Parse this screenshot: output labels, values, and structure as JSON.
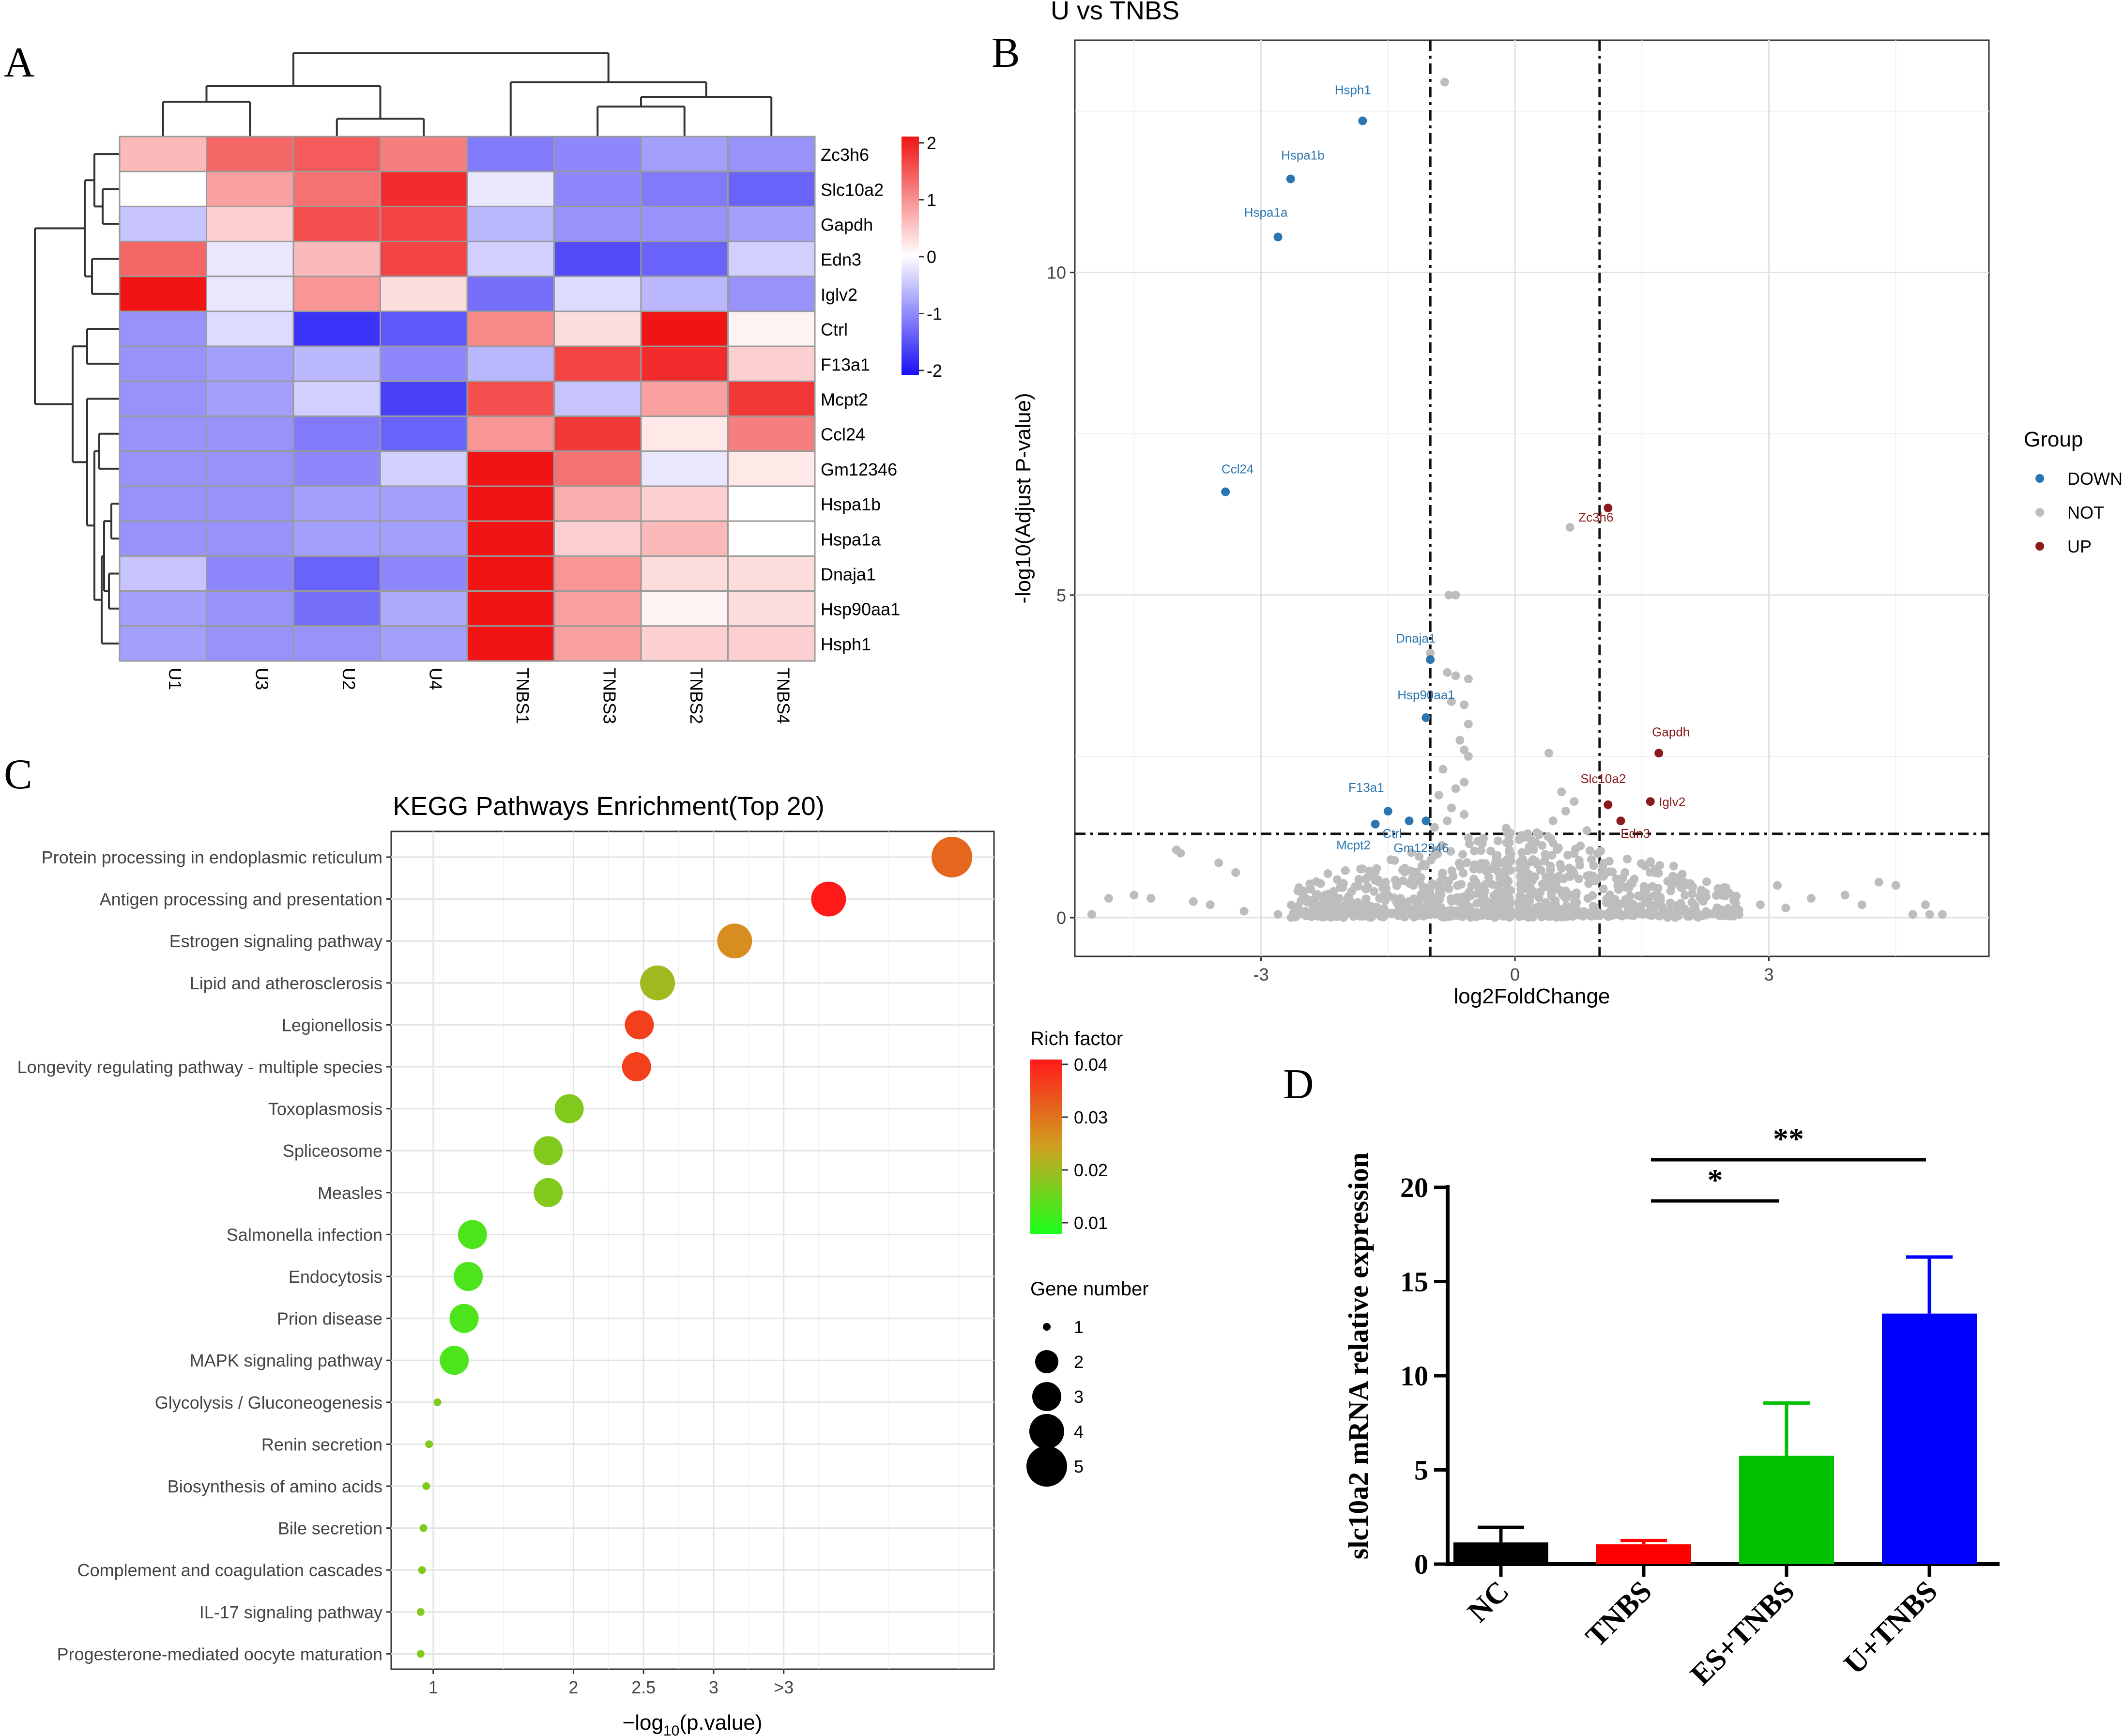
{
  "chart_data": [
    {
      "panel": "A",
      "type": "heatmap",
      "panel_label": "A",
      "rows": [
        "Zc3h6",
        "Slc10a2",
        "Gapdh",
        "Edn3",
        "Iglv2",
        "Ctrl",
        "F13a1",
        "Mcpt2",
        "Ccl24",
        "Gm12346",
        "Hspa1b",
        "Hspa1a",
        "Dnaja1",
        "Hsp90aa1",
        "Hsph1"
      ],
      "columns": [
        "U1",
        "U3",
        "U2",
        "U4",
        "TNBS1",
        "TNBS3",
        "TNBS2",
        "TNBS4"
      ],
      "values": [
        [
          0.6,
          1.3,
          1.4,
          1.1,
          -1.1,
          -1.0,
          -0.8,
          -0.9
        ],
        [
          0.0,
          0.8,
          1.2,
          1.8,
          -0.2,
          -1.0,
          -1.1,
          -1.3
        ],
        [
          -0.5,
          0.4,
          1.5,
          1.6,
          -0.6,
          -0.9,
          -0.9,
          -0.8
        ],
        [
          1.3,
          -0.2,
          0.6,
          1.6,
          -0.4,
          -1.5,
          -1.3,
          -0.4
        ],
        [
          2.0,
          -0.2,
          0.9,
          0.3,
          -1.2,
          -0.3,
          -0.6,
          -0.9
        ],
        [
          -0.9,
          -0.3,
          -1.7,
          -1.4,
          1.0,
          0.3,
          2.0,
          0.1
        ],
        [
          -0.9,
          -0.8,
          -0.6,
          -1.0,
          -0.6,
          1.6,
          1.8,
          0.4
        ],
        [
          -0.9,
          -0.8,
          -0.4,
          -1.6,
          1.5,
          -0.5,
          0.8,
          1.7
        ],
        [
          -0.9,
          -0.9,
          -1.1,
          -1.3,
          0.9,
          1.7,
          0.2,
          1.1
        ],
        [
          -0.9,
          -0.9,
          -1.0,
          -0.4,
          2.0,
          1.2,
          -0.2,
          0.2
        ],
        [
          -0.9,
          -0.9,
          -0.8,
          -0.8,
          2.1,
          0.7,
          0.4,
          0.0
        ],
        [
          -0.9,
          -0.9,
          -0.8,
          -0.8,
          2.1,
          0.4,
          0.6,
          0.0
        ],
        [
          -0.5,
          -1.0,
          -1.3,
          -1.0,
          2.0,
          0.9,
          0.3,
          0.3
        ],
        [
          -0.8,
          -0.9,
          -1.2,
          -0.7,
          2.1,
          0.8,
          0.1,
          0.3
        ],
        [
          -0.8,
          -0.9,
          -0.9,
          -0.8,
          2.1,
          0.8,
          0.4,
          0.4
        ]
      ],
      "legend_ticks": [
        "2",
        "1",
        "0",
        "-1",
        "-2"
      ],
      "legend_range": [
        -2,
        2
      ],
      "colors": {
        "low": "#1a0ff7",
        "mid": "#ffffff",
        "high": "#f01414"
      }
    },
    {
      "panel": "B",
      "type": "scatter",
      "panel_label": "B",
      "title": "U vs TNBS",
      "xlabel": "log2FoldChange",
      "ylabel": "-log10(Adjust P-value)",
      "xlim": [
        -5.2,
        5.6
      ],
      "ylim": [
        -0.6,
        13.6
      ],
      "xticks": [
        "-3",
        "0",
        "3"
      ],
      "xtick_values": [
        -3,
        0,
        3
      ],
      "yticks": [
        "0",
        "5",
        "10"
      ],
      "ytick_values": [
        0,
        5,
        10
      ],
      "vlines": [
        -1,
        1
      ],
      "hline": 1.3,
      "legend_title": "Group",
      "legend": [
        "DOWN",
        "NOT",
        "UP"
      ],
      "group_colors": {
        "DOWN": "#2b76b0",
        "NOT": "#bdbdbd",
        "UP": "#8b1a1a"
      },
      "labeled_points": [
        {
          "gene": "Hsph1",
          "x": -1.8,
          "y": 12.35,
          "group": "DOWN"
        },
        {
          "gene": "Hspa1b",
          "x": -2.65,
          "y": 11.45,
          "group": "DOWN"
        },
        {
          "gene": "Hspa1a",
          "x": -2.8,
          "y": 10.55,
          "group": "DOWN"
        },
        {
          "gene": "Ccl24",
          "x": -3.42,
          "y": 6.6,
          "group": "DOWN"
        },
        {
          "gene": "Dnaja1",
          "x": -1.0,
          "y": 4.0,
          "group": "DOWN"
        },
        {
          "gene": "Hsp90aa1",
          "x": -1.05,
          "y": 3.1,
          "group": "DOWN"
        },
        {
          "gene": "F13a1",
          "x": -1.5,
          "y": 1.65,
          "group": "DOWN"
        },
        {
          "gene": "Ctrl",
          "x": -1.25,
          "y": 1.5,
          "group": "DOWN"
        },
        {
          "gene": "Mcpt2",
          "x": -1.65,
          "y": 1.45,
          "group": "DOWN"
        },
        {
          "gene": "Gm12346",
          "x": -1.05,
          "y": 1.5,
          "group": "DOWN"
        },
        {
          "gene": "Zc3h6",
          "x": 1.1,
          "y": 6.35,
          "group": "UP"
        },
        {
          "gene": "Gapdh",
          "x": 1.7,
          "y": 2.55,
          "group": "UP"
        },
        {
          "gene": "Slc10a2",
          "x": 1.1,
          "y": 1.75,
          "group": "UP"
        },
        {
          "gene": "Iglv2",
          "x": 1.6,
          "y": 1.8,
          "group": "UP"
        },
        {
          "gene": "Edn3",
          "x": 1.25,
          "y": 1.5,
          "group": "UP"
        }
      ],
      "other_points": [
        [
          -0.83,
          12.95
        ],
        [
          -1.0,
          4.1
        ],
        [
          -0.78,
          5.0
        ],
        [
          -0.7,
          5.0
        ],
        [
          -0.7,
          3.75
        ],
        [
          -0.8,
          3.8
        ],
        [
          -0.55,
          3.7
        ],
        [
          -0.6,
          3.3
        ],
        [
          -0.75,
          3.35
        ],
        [
          -0.55,
          3.0
        ],
        [
          -0.65,
          2.75
        ],
        [
          -0.6,
          2.6
        ],
        [
          -0.55,
          2.5
        ],
        [
          -0.85,
          2.3
        ],
        [
          -0.6,
          2.1
        ],
        [
          -0.7,
          2.0
        ],
        [
          -0.9,
          1.9
        ],
        [
          -0.75,
          1.7
        ],
        [
          -0.6,
          1.6
        ],
        [
          -0.8,
          1.5
        ],
        [
          -0.95,
          1.4
        ],
        [
          0.65,
          6.05
        ],
        [
          0.4,
          2.55
        ],
        [
          0.55,
          1.95
        ],
        [
          0.7,
          1.8
        ],
        [
          0.6,
          1.65
        ],
        [
          0.45,
          1.5
        ],
        [
          0.85,
          1.35
        ],
        [
          -4.0,
          1.05
        ],
        [
          -3.95,
          1.0
        ],
        [
          -3.5,
          0.85
        ],
        [
          -3.3,
          0.7
        ],
        [
          -4.5,
          0.35
        ],
        [
          -4.3,
          0.3
        ],
        [
          -5.0,
          0.05
        ],
        [
          -4.8,
          0.3
        ],
        [
          -3.8,
          0.25
        ],
        [
          -3.6,
          0.2
        ],
        [
          -3.2,
          0.1
        ],
        [
          -2.8,
          0.05
        ],
        [
          -2.5,
          0.35
        ],
        [
          -2.2,
          0.25
        ],
        [
          -2.0,
          0.2
        ],
        [
          -1.7,
          0.15
        ],
        [
          -1.5,
          0.35
        ],
        [
          -1.3,
          0.2
        ],
        [
          -1.2,
          0.5
        ],
        [
          -1.1,
          0.8
        ],
        [
          -0.3,
          0.2
        ],
        [
          -0.2,
          0.5
        ],
        [
          0.3,
          0.4
        ],
        [
          0.6,
          0.3
        ],
        [
          1.2,
          0.6
        ],
        [
          1.6,
          0.85
        ],
        [
          2.0,
          0.55
        ],
        [
          2.2,
          0.4
        ],
        [
          2.6,
          0.3
        ],
        [
          2.9,
          0.2
        ],
        [
          3.2,
          0.15
        ],
        [
          3.5,
          0.3
        ],
        [
          3.9,
          0.35
        ],
        [
          4.1,
          0.2
        ],
        [
          4.3,
          0.55
        ],
        [
          4.5,
          0.5
        ],
        [
          4.7,
          0.05
        ],
        [
          4.9,
          0.05
        ],
        [
          5.05,
          0.05
        ],
        [
          4.85,
          0.2
        ],
        [
          3.1,
          0.5
        ],
        [
          2.4,
          0.45
        ],
        [
          1.9,
          0.6
        ],
        [
          1.3,
          0.7
        ]
      ]
    },
    {
      "panel": "C",
      "type": "scatter",
      "panel_label": "C",
      "title": "KEGG Pathways Enrichment(Top 20)",
      "xlabel_main": "−log",
      "xlabel_sub": "10",
      "xlabel_tail": "(p.value)",
      "xticks": [
        "1",
        "2",
        "2.5",
        "3",
        ">3"
      ],
      "xtick_values": [
        1,
        2,
        2.5,
        3,
        3.5
      ],
      "xlim": [
        0.7,
        5.0
      ],
      "color_legend_title": "Rich factor",
      "color_legend_ticks": [
        "0.04",
        "0.03",
        "0.02",
        "0.01"
      ],
      "color_legend_range": [
        0.005,
        0.04
      ],
      "size_legend_title": "Gene number",
      "size_legend_ticks": [
        "1",
        "2",
        "3",
        "4",
        "5"
      ],
      "pathways": [
        {
          "name": "Protein processing in endoplasmic reticulum",
          "x": 4.7,
          "genes": 5,
          "rich": 0.03
        },
        {
          "name": "Antigen processing and presentation",
          "x": 3.82,
          "genes": 4,
          "rich": 0.04
        },
        {
          "name": "Estrogen signaling pathway",
          "x": 3.15,
          "genes": 4,
          "rich": 0.025
        },
        {
          "name": "Lipid and atherosclerosis",
          "x": 2.6,
          "genes": 4,
          "rich": 0.018
        },
        {
          "name": "Legionellosis",
          "x": 2.47,
          "genes": 3,
          "rich": 0.035
        },
        {
          "name": "Longevity regulating pathway - multiple species",
          "x": 2.45,
          "genes": 3,
          "rich": 0.035
        },
        {
          "name": "Toxoplasmosis",
          "x": 1.97,
          "genes": 3,
          "rich": 0.015
        },
        {
          "name": "Spliceosome",
          "x": 1.82,
          "genes": 3,
          "rich": 0.015
        },
        {
          "name": "Measles",
          "x": 1.82,
          "genes": 3,
          "rich": 0.015
        },
        {
          "name": "Salmonella infection",
          "x": 1.28,
          "genes": 3,
          "rich": 0.01
        },
        {
          "name": "Endocytosis",
          "x": 1.25,
          "genes": 3,
          "rich": 0.01
        },
        {
          "name": "Prion disease",
          "x": 1.22,
          "genes": 3,
          "rich": 0.01
        },
        {
          "name": "MAPK signaling pathway",
          "x": 1.15,
          "genes": 3,
          "rich": 0.01
        },
        {
          "name": "Glycolysis / Gluconeogenesis",
          "x": 1.03,
          "genes": 1,
          "rich": 0.015
        },
        {
          "name": "Renin secretion",
          "x": 0.97,
          "genes": 1,
          "rich": 0.015
        },
        {
          "name": "Biosynthesis of amino acids",
          "x": 0.95,
          "genes": 1,
          "rich": 0.015
        },
        {
          "name": "Bile secretion",
          "x": 0.93,
          "genes": 1,
          "rich": 0.015
        },
        {
          "name": "Complement and coagulation cascades",
          "x": 0.92,
          "genes": 1,
          "rich": 0.015
        },
        {
          "name": "IL-17 signaling pathway",
          "x": 0.91,
          "genes": 1,
          "rich": 0.015
        },
        {
          "name": "Progesterone-mediated oocyte maturation",
          "x": 0.91,
          "genes": 1,
          "rich": 0.015
        }
      ]
    },
    {
      "panel": "D",
      "type": "bar",
      "panel_label": "D",
      "ylabel": "slc10a2 mRNA relative expression",
      "categories": [
        "NC",
        "TNBS",
        "ES+TNBS",
        "U+TNBS"
      ],
      "values": [
        1.15,
        1.05,
        5.75,
        13.3
      ],
      "errors": [
        0.8,
        0.2,
        2.8,
        3.0
      ],
      "colors": [
        "#000000",
        "#ff0000",
        "#00c000",
        "#0000ff"
      ],
      "ylim": [
        0,
        20
      ],
      "yticks": [
        "0",
        "5",
        "10",
        "15",
        "20"
      ],
      "ytick_values": [
        0,
        5,
        10,
        15,
        20
      ],
      "significance": [
        {
          "from": "TNBS",
          "to": "ES+TNBS",
          "label": "*"
        },
        {
          "from": "TNBS",
          "to": "U+TNBS",
          "label": "**"
        }
      ]
    }
  ]
}
